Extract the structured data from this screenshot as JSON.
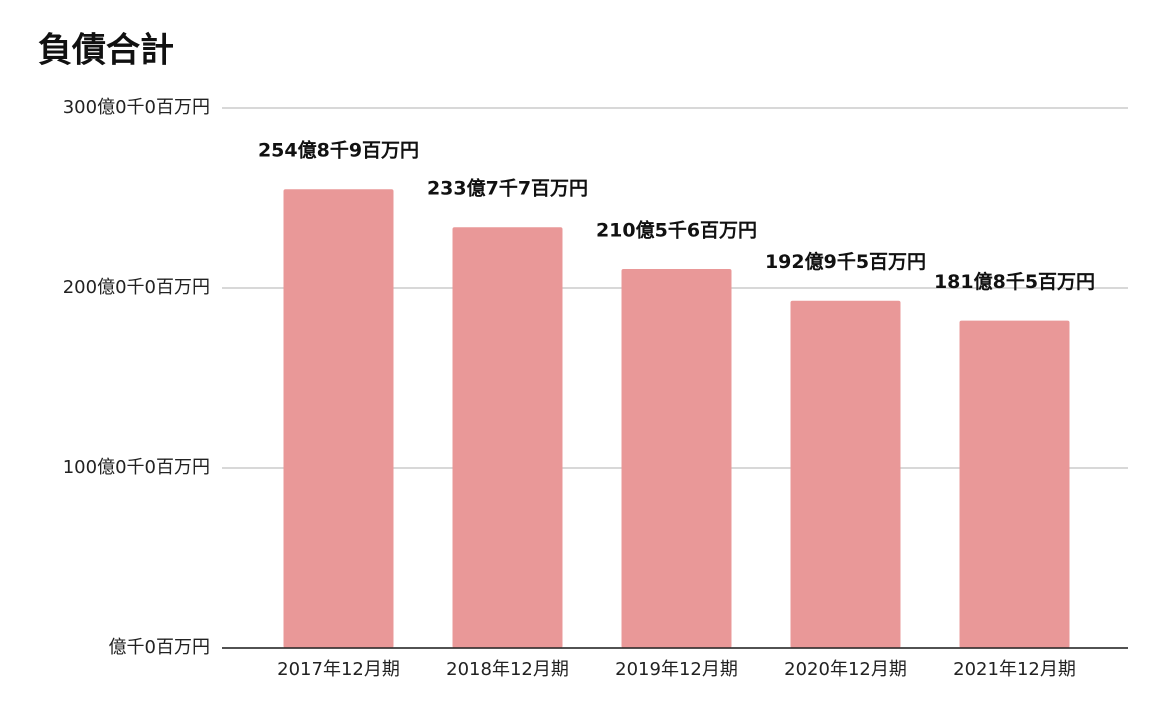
{
  "chart_data": {
    "type": "bar",
    "title": "負債合計",
    "categories": [
      "2017年12月期",
      "2018年12月期",
      "2019年12月期",
      "2020年12月期",
      "2021年12月期"
    ],
    "values": [
      254.89,
      233.77,
      210.56,
      192.95,
      181.85
    ],
    "value_labels": [
      "254億8千9百万円",
      "233億7千7百万円",
      "210億5千6百万円",
      "192億9千5百万円",
      "181億8千5百万円"
    ],
    "color": "#e99898",
    "ylim": [
      0,
      300
    ],
    "yticks": [
      {
        "value": 0,
        "label": "億千0百万円"
      },
      {
        "value": 100,
        "label": "100億0千0百万円"
      },
      {
        "value": 200,
        "label": "200億0千0百万円"
      },
      {
        "value": 300,
        "label": "300億0千0百万円"
      }
    ],
    "grid": true
  }
}
